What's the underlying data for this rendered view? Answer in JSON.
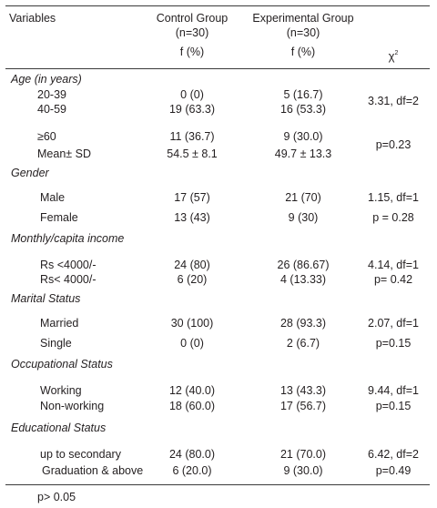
{
  "header": {
    "variables": "Variables",
    "control": "Control Group",
    "control_n": "(n=30)",
    "control_unit": "f (%)",
    "exp": "Experimental Group",
    "exp_n": "(n=30)",
    "exp_unit": "f (%)",
    "chi_symbol": "χ",
    "chi_sup": "2"
  },
  "sections": {
    "age": "Age (in years)",
    "gender": "Gender",
    "income": "Monthly/capita income",
    "marital": "Marital Status",
    "occupation": "Occupational Status",
    "education": "Educational Status"
  },
  "rows": {
    "age_20_39": {
      "label": "20-39",
      "control": "0 (0)",
      "exp": "5 (16.7)"
    },
    "age_40_59": {
      "label": "40-59",
      "control": "19 (63.3)",
      "exp": "16 (53.3)"
    },
    "age_60": {
      "label": "≥60",
      "control": "11 (36.7)",
      "exp": "9 (30.0)"
    },
    "age_mean": {
      "label": "Mean± SD",
      "control": "54.5 ± 8.1",
      "exp": "49.7 ± 13.3"
    },
    "male": {
      "label": "Male",
      "control": "17 (57)",
      "exp": "21 (70)"
    },
    "female": {
      "label": "Female",
      "control": "13 (43)",
      "exp": "9 (30)"
    },
    "income_hi": {
      "label": "Rs <4000/-",
      "control": "24 (80)",
      "exp": "26 (86.67)"
    },
    "income_lo": {
      "label": "Rs< 4000/-",
      "control": "6 (20)",
      "exp": "4 (13.33)"
    },
    "married": {
      "label": "Married",
      "control": "30 (100)",
      "exp": "28 (93.3)"
    },
    "single": {
      "label": "Single",
      "control": "0 (0)",
      "exp": "2 (6.7)"
    },
    "working": {
      "label": "Working",
      "control": "12 (40.0)",
      "exp": "13 (43.3)"
    },
    "nonworking": {
      "label": "Non-working",
      "control": "18 (60.0)",
      "exp": "17 (56.7)"
    },
    "secondary": {
      "label": "up to secondary",
      "control": "24 (80.0)",
      "exp": "21 (70.0)"
    },
    "graduation": {
      "label": "Graduation & above",
      "control": "6 (20.0)",
      "exp": "9 (30.0)"
    }
  },
  "chi": {
    "age_1": "3.31, df=2",
    "age_2": "p=0.23",
    "gender_1": "1.15, df=1",
    "gender_2": "p = 0.28",
    "income_1": "4.14, df=1",
    "income_2": "p= 0.42",
    "marital_1": "2.07, df=1",
    "marital_2": "p=0.15",
    "occupation_1": "9.44, df=1",
    "occupation_2": "p=0.15",
    "education_1": "6.42, df=2",
    "education_2": "p=0.49"
  },
  "footnote": "p> 0.05"
}
